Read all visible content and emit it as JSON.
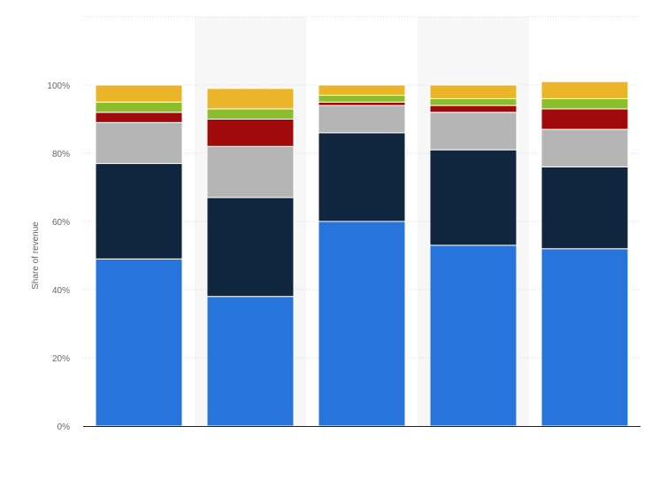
{
  "chart_data": {
    "type": "bar",
    "stacked": true,
    "categories": [
      "",
      "",
      "",
      "",
      ""
    ],
    "series": [
      {
        "color": "#2775dc",
        "values": [
          49,
          38,
          60,
          53,
          52
        ]
      },
      {
        "color": "#10263e",
        "values": [
          28,
          29,
          26,
          28,
          24
        ]
      },
      {
        "color": "#b5b5b5",
        "values": [
          12,
          15,
          8,
          11,
          11
        ]
      },
      {
        "color": "#a10a0a",
        "values": [
          3,
          8,
          1,
          2,
          6
        ]
      },
      {
        "color": "#8bbd2c",
        "values": [
          3,
          3,
          2,
          2,
          3
        ]
      },
      {
        "color": "#ebb429",
        "values": [
          5,
          6,
          3,
          4,
          5
        ]
      }
    ],
    "ylabel": "Share of revenue",
    "yticks": [
      "0%",
      "20%",
      "40%",
      "60%",
      "80%",
      "100%"
    ],
    "ylim": [
      0,
      120
    ],
    "grid": true,
    "legend": "none"
  }
}
